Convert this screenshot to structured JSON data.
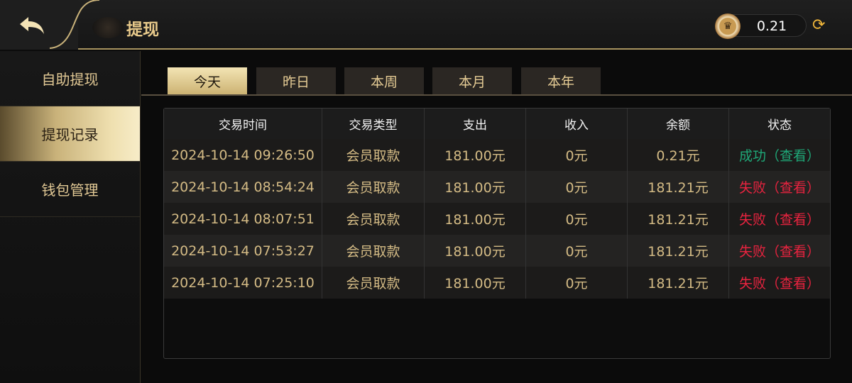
{
  "header": {
    "title": "提现",
    "balance": "0.21",
    "icons": {
      "back": "back-arrow-icon",
      "coin": "crown-coin-icon",
      "refresh": "refresh-icon"
    }
  },
  "sidebar": {
    "items": [
      {
        "label": "自助提现"
      },
      {
        "label": "提现记录",
        "active": true
      },
      {
        "label": "钱包管理"
      }
    ]
  },
  "tabs": [
    {
      "label": "今天",
      "active": true
    },
    {
      "label": "昨日"
    },
    {
      "label": "本周"
    },
    {
      "label": "本月"
    },
    {
      "label": "本年"
    }
  ],
  "table": {
    "headers": [
      "交易时间",
      "交易类型",
      "支出",
      "收入",
      "余额",
      "状态"
    ],
    "rows": [
      {
        "time": "2024-10-14 09:26:50",
        "type": "会员取款",
        "out": "181.00元",
        "in": "0元",
        "balance": "0.21元",
        "status": "成功（查看）",
        "status_color": "#1fa878"
      },
      {
        "time": "2024-10-14 08:54:24",
        "type": "会员取款",
        "out": "181.00元",
        "in": "0元",
        "balance": "181.21元",
        "status": "失败（查看）",
        "status_color": "#e8233f"
      },
      {
        "time": "2024-10-14 08:07:51",
        "type": "会员取款",
        "out": "181.00元",
        "in": "0元",
        "balance": "181.21元",
        "status": "失败（查看）",
        "status_color": "#e8233f"
      },
      {
        "time": "2024-10-14 07:53:27",
        "type": "会员取款",
        "out": "181.00元",
        "in": "0元",
        "balance": "181.21元",
        "status": "失败（查看）",
        "status_color": "#e8233f"
      },
      {
        "time": "2024-10-14 07:25:10",
        "type": "会员取款",
        "out": "181.00元",
        "in": "0元",
        "balance": "181.21元",
        "status": "失败（查看）",
        "status_color": "#e8233f"
      }
    ]
  },
  "colors": {
    "accent": "#e2c995",
    "success": "#1fa878",
    "fail": "#e8233f"
  }
}
